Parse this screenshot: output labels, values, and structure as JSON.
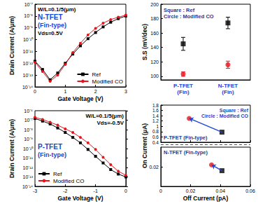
{
  "chart_data": [
    {
      "type": "line",
      "title": "N-TFET",
      "subtitle": "(Fin-type)",
      "annotations": [
        "W/L=0.1/5(μm)",
        "Vds=0.5V"
      ],
      "x_label": "Gate Voltage (V)",
      "y_label": "Drain Current (A/μm)",
      "x": [
        0,
        0.25,
        0.5,
        0.75,
        1,
        1.25,
        1.5,
        1.75,
        2,
        2.25,
        2.5,
        2.75,
        3
      ],
      "series": [
        {
          "name": "Ref",
          "color": "#000000",
          "marker": "square",
          "values": [
            1.5e-12,
            3e-13,
            4e-14,
            1.5e-13,
            1e-12,
            6e-12,
            3e-11,
            1.2e-10,
            4e-10,
            1.2e-09,
            3e-09,
            6e-09,
            1e-08
          ]
        },
        {
          "name": "Modified CO",
          "color": "#e8141c",
          "marker": "circle",
          "values": [
            1.2e-12,
            2e-13,
            3e-14,
            1e-13,
            8e-13,
            8e-12,
            5e-11,
            2.5e-10,
            9e-10,
            2.5e-09,
            5e-09,
            8e-09,
            1.2e-08
          ]
        }
      ],
      "xlim": [
        0,
        3
      ],
      "xticks": [
        0,
        1,
        2,
        3
      ],
      "ylim": [
        1e-14,
        1e-07
      ],
      "yticks": [
        {
          "value": 1e-14,
          "label": "10⁻¹⁴"
        },
        {
          "value": 1e-13,
          "label": "10⁻¹³"
        },
        {
          "value": 1e-12,
          "label": "10⁻¹²"
        },
        {
          "value": 1e-11,
          "label": "10⁻¹¹"
        },
        {
          "value": 1e-10,
          "label": "10⁻¹⁰"
        },
        {
          "value": 1e-09,
          "label": "10⁻⁹"
        },
        {
          "value": 1e-08,
          "label": "10⁻⁸"
        },
        {
          "value": 1e-07,
          "label": "10⁻⁷"
        }
      ],
      "log": "y",
      "legend": "lower right",
      "grid": false
    },
    {
      "type": "scatter",
      "y_label": "S.S (mV/dec)",
      "annotations": [
        "Square : Ref",
        "Circle : Modified CO"
      ],
      "categories": [
        "P-TFET (Fin)",
        "N-TFET (Fin)"
      ],
      "series": [
        {
          "name": "Ref",
          "color": "#000000",
          "marker": "square",
          "values": [
            145,
            174
          ],
          "errors": [
            9,
            8
          ]
        },
        {
          "name": "Modified CO",
          "color": "#e8141c",
          "marker": "circle",
          "values": [
            103,
            116
          ],
          "errors": [
            3,
            5
          ]
        }
      ],
      "ylim": [
        95,
        200
      ],
      "yticks": [
        100,
        120,
        140,
        160,
        180,
        200
      ],
      "grid": false
    },
    {
      "type": "line",
      "title": "P-TFET",
      "subtitle": "(Fin-type)",
      "annotations": [
        "W/L=0.1/5(μm)",
        "Vds=-0.5V"
      ],
      "x_label": "Gate Voltage (V)",
      "y_label": "Drain Current (A/μm)",
      "x": [
        -3,
        -2.75,
        -2.5,
        -2.25,
        -2,
        -1.75,
        -1.5,
        -1.25,
        -1,
        -0.75,
        -0.5,
        -0.25,
        0
      ],
      "series": [
        {
          "name": "Ref",
          "color": "#000000",
          "marker": "square",
          "values": [
            1.5e-07,
            8e-08,
            4e-08,
            1.5e-08,
            5e-09,
            1.5e-09,
            4e-10,
            8e-11,
            1.5e-11,
            3e-12,
            6e-13,
            2e-13,
            1e-13
          ]
        },
        {
          "name": "Modified CO",
          "color": "#e8141c",
          "marker": "circle",
          "values": [
            2e-07,
            1.2e-07,
            6e-08,
            3e-08,
            1.2e-08,
            5e-09,
            1.5e-09,
            4e-10,
            8e-11,
            1.2e-11,
            2e-12,
            4e-13,
            1.5e-13
          ]
        }
      ],
      "xlim": [
        -3,
        0
      ],
      "xticks": [
        -3,
        -2,
        -1,
        0
      ],
      "ylim": [
        1e-14,
        1e-06
      ],
      "yticks": [
        {
          "value": 1e-14,
          "label": "10⁻¹⁴"
        },
        {
          "value": 1e-13,
          "label": "10⁻¹³"
        },
        {
          "value": 1e-12,
          "label": "10⁻¹²"
        },
        {
          "value": 1e-11,
          "label": "10⁻¹¹"
        },
        {
          "value": 1e-10,
          "label": "10⁻¹⁰"
        },
        {
          "value": 1e-09,
          "label": "10⁻⁹"
        },
        {
          "value": 1e-08,
          "label": "10⁻⁸"
        },
        {
          "value": 1e-07,
          "label": "10⁻⁷"
        },
        {
          "value": 1e-06,
          "label": "10⁻⁶"
        }
      ],
      "log": "y",
      "legend": "lower left",
      "grid": false
    },
    {
      "type": "scatter",
      "title": "P-TFET (Fin-type)",
      "y_label": "On Current (μA)",
      "annotations": [
        "Square : Ref",
        "Circle : Modified CO"
      ],
      "series": [
        {
          "name": "Ref",
          "color": "#000000",
          "marker": "square",
          "x": [
            0.041
          ],
          "values": [
            0.78
          ]
        },
        {
          "name": "Modified CO",
          "color": "#e8141c",
          "marker": "circle",
          "x": [
            0.019
          ],
          "values": [
            1.3
          ]
        }
      ],
      "xlim": [
        0,
        0.06
      ],
      "xticks": [
        0,
        0.02,
        0.04,
        0.06
      ],
      "ylim": [
        0.4,
        1.8
      ],
      "yticks": [
        0.4,
        0.6,
        0.8,
        1,
        1.2,
        1.4,
        1.6,
        1.8
      ],
      "tick_labels": "y",
      "grid": false
    },
    {
      "type": "scatter",
      "title": "N-TFET (Fin-type)",
      "x_label": "Off Current (pA)",
      "series": [
        {
          "name": "Ref",
          "color": "#000000",
          "marker": "square",
          "x": [
            0.041
          ],
          "values": [
            0.016
          ]
        },
        {
          "name": "Modified CO",
          "color": "#e8141c",
          "marker": "circle",
          "x": [
            0.034
          ],
          "values": [
            0.022
          ]
        }
      ],
      "xlim": [
        0,
        0.06
      ],
      "xticks": [
        0,
        0.02,
        0.04,
        0.06
      ],
      "ylim": [
        0,
        0.04
      ],
      "yticks": [
        0.02
      ],
      "grid": false
    }
  ]
}
